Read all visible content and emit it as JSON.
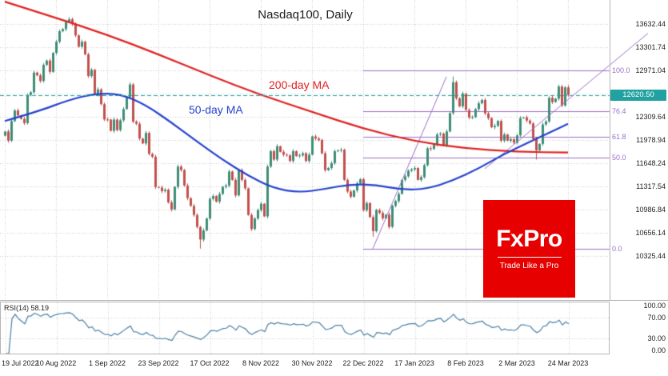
{
  "title": "Nasdaq100, Daily",
  "annotations": {
    "ma200_label": "200-day MA",
    "ma50_label": "50-day MA"
  },
  "logo": {
    "name": "FxPro",
    "tagline": "Trade Like a Pro"
  },
  "current_price_tag": "12620.50",
  "price_axis": {
    "labels": [
      "13632.44",
      "13301.74",
      "12971.04",
      "12640.34",
      "12309.64",
      "11978.94",
      "11648.24",
      "11317.54",
      "10986.84",
      "10656.14",
      "10325.44"
    ]
  },
  "rsi_panel": {
    "label": "RSI(14) 58.19",
    "axis_labels": [
      "100.00",
      "70.00",
      "30.00",
      "0.00"
    ],
    "upper_level": 70,
    "lower_level": 30
  },
  "colors": {
    "up": "#3f8d77",
    "down": "#c0504d",
    "ma200": "#e02020",
    "ma50": "#2442cc",
    "fib": "#9b6dc6",
    "grid": "#c9c9c9",
    "price_line": "#21a1a1",
    "rsi": "#4a7fa5",
    "logo_bg": "#e60000",
    "text": "#1c1c1c"
  },
  "chart_data": {
    "type": "candlestick",
    "symbol": "Nasdaq100",
    "timeframe": "Daily",
    "title": "Nasdaq100, Daily",
    "x_tick_labels": [
      "19 Jul 2022",
      "10 Aug 2022",
      "1 Sep 2022",
      "23 Sep 2022",
      "17 Oct 2022",
      "8 Nov 2022",
      "30 Nov 2022",
      "22 Dec 2022",
      "17 Jan 2023",
      "8 Feb 2023",
      "2 Mar 2023",
      "24 Mar 2023"
    ],
    "tick_step": 16,
    "ylim": [
      9700,
      13980
    ],
    "price_gridlines": [
      13632.44,
      13301.74,
      12971.04,
      12640.34,
      12309.64,
      11978.94,
      11648.24,
      11317.54,
      10986.84,
      10656.14,
      10325.44
    ],
    "last_price": 12620.5,
    "closes": [
      12100,
      11970,
      12250,
      12400,
      12330,
      12280,
      12220,
      12620,
      12660,
      12940,
      12900,
      12820,
      13050,
      13110,
      12950,
      13220,
      13380,
      13530,
      13560,
      13660,
      13700,
      13630,
      13470,
      13310,
      13380,
      13200,
      12890,
      12980,
      12630,
      12700,
      12490,
      12272,
      12270,
      12110,
      12270,
      12120,
      12260,
      12420,
      12590,
      12770,
      12240,
      12210,
      12000,
      11930,
      12080,
      11780,
      11740,
      11310,
      11300,
      11250,
      11270,
      11090,
      10990,
      11310,
      11600,
      11550,
      11330,
      11150,
      11040,
      10910,
      10740,
      10560,
      10690,
      10860,
      11140,
      11180,
      11100,
      11210,
      11310,
      11330,
      11530,
      11410,
      11190,
      11550,
      11410,
      11290,
      10910,
      10710,
      10860,
      10980,
      11070,
      10890,
      11600,
      11820,
      11700,
      11890,
      11810,
      11770,
      11760,
      11680,
      11820,
      11750,
      11760,
      11790,
      11680,
      11770,
      12030,
      12000,
      11980,
      11790,
      11550,
      11580,
      11650,
      11820,
      11830,
      11840,
      11410,
      11244,
      11170,
      11260,
      11360,
      11420,
      10980,
      11080,
      10880,
      10679,
      10981,
      10940,
      10862,
      10914,
      10741,
      11040,
      11108,
      11210,
      11410,
      11461,
      11541,
      11560,
      11580,
      11410,
      11450,
      11619,
      11861,
      11850,
      11910,
      12057,
      12070,
      11910,
      12101,
      12363,
      12803,
      12573,
      12459,
      12640,
      12407,
      12300,
      12305,
      12420,
      12502,
      12550,
      12358,
      12290,
      12161,
      12180,
      12250,
      11969,
      12057,
      11970,
      11990,
      11940,
      12045,
      12291,
      12301,
      12256,
      12215,
      11995,
      11830,
      11923,
      12200,
      12243,
      12581,
      12520,
      12568,
      12741,
      12470,
      12729,
      12620.5
    ],
    "wick_overrides": {
      "20": {
        "high": 13730
      },
      "61": {
        "low": 10430
      },
      "115": {
        "low": 10600
      },
      "140": {
        "high": 12885
      },
      "166": {
        "low": 11700
      },
      "176": {
        "high": 12760
      }
    },
    "ma200_points": [
      [
        0,
        13950
      ],
      [
        16,
        13720
      ],
      [
        32,
        13480
      ],
      [
        48,
        13200
      ],
      [
        64,
        12900
      ],
      [
        80,
        12620
      ],
      [
        96,
        12380
      ],
      [
        112,
        12140
      ],
      [
        128,
        11960
      ],
      [
        144,
        11860
      ],
      [
        160,
        11810
      ],
      [
        176,
        11800
      ]
    ],
    "ma50_points": [
      [
        0,
        12250
      ],
      [
        10,
        12380
      ],
      [
        20,
        12550
      ],
      [
        28,
        12640
      ],
      [
        36,
        12640
      ],
      [
        44,
        12480
      ],
      [
        52,
        12230
      ],
      [
        60,
        11960
      ],
      [
        68,
        11700
      ],
      [
        76,
        11470
      ],
      [
        84,
        11290
      ],
      [
        92,
        11230
      ],
      [
        100,
        11280
      ],
      [
        108,
        11350
      ],
      [
        116,
        11340
      ],
      [
        124,
        11270
      ],
      [
        132,
        11280
      ],
      [
        140,
        11400
      ],
      [
        148,
        11570
      ],
      [
        156,
        11780
      ],
      [
        164,
        11950
      ],
      [
        170,
        12080
      ],
      [
        176,
        12210
      ]
    ],
    "fib_levels": [
      {
        "label": "100.0",
        "price": 12970
      },
      {
        "label": "76.4",
        "price": 12384
      },
      {
        "label": "61.8",
        "price": 12020
      },
      {
        "label": "50.0",
        "price": 11725
      },
      {
        "label": "0.0",
        "price": 10430
      }
    ],
    "fib_start_index": 112,
    "trend_lines": [
      {
        "from": [
          115,
          10430
        ],
        "to": [
          138,
          12880
        ]
      },
      {
        "from": [
          150,
          11570
        ],
        "to": [
          201,
          13500
        ]
      }
    ],
    "rsi_period": 14,
    "rsi_current": 58.19
  }
}
